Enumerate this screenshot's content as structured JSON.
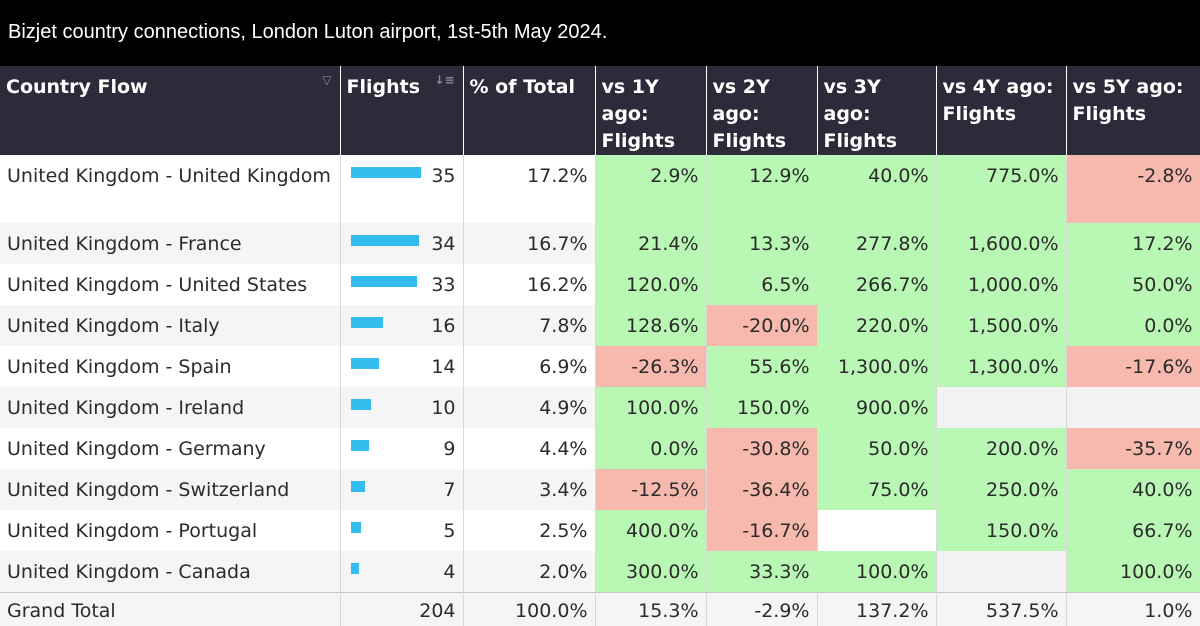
{
  "title": "Bizjet country connections, London Luton airport, 1st-5th May 2024.",
  "colors": {
    "header_bg": "#2b2b3a",
    "positive": "#b8f7b4",
    "negative": "#f7b8ad",
    "bar": "#33bdef"
  },
  "icons": {
    "country_sort": "filter-icon",
    "flights_sort": "sort-descending-icon"
  },
  "chart_data": {
    "type": "table",
    "columns": [
      "Country Flow",
      "Flights",
      "% of Total",
      "vs 1Y ago: Flights",
      "vs 2Y ago: Flights",
      "vs 3Y ago: Flights",
      "vs 4Y ago: Flights",
      "vs 5Y ago: Flights"
    ],
    "bar_max": 35,
    "rows": [
      {
        "country": "United Kingdom - United Kingdom",
        "flights": 35,
        "pct": "17.2%",
        "vs": [
          "2.9%",
          "12.9%",
          "40.0%",
          "775.0%",
          "-2.8%"
        ]
      },
      {
        "country": "United Kingdom - France",
        "flights": 34,
        "pct": "16.7%",
        "vs": [
          "21.4%",
          "13.3%",
          "277.8%",
          "1,600.0%",
          "17.2%"
        ]
      },
      {
        "country": "United Kingdom - United States",
        "flights": 33,
        "pct": "16.2%",
        "vs": [
          "120.0%",
          "6.5%",
          "266.7%",
          "1,000.0%",
          "50.0%"
        ]
      },
      {
        "country": "United Kingdom - Italy",
        "flights": 16,
        "pct": "7.8%",
        "vs": [
          "128.6%",
          "-20.0%",
          "220.0%",
          "1,500.0%",
          "0.0%"
        ]
      },
      {
        "country": "United Kingdom - Spain",
        "flights": 14,
        "pct": "6.9%",
        "vs": [
          "-26.3%",
          "55.6%",
          "1,300.0%",
          "1,300.0%",
          "-17.6%"
        ]
      },
      {
        "country": "United Kingdom - Ireland",
        "flights": 10,
        "pct": "4.9%",
        "vs": [
          "100.0%",
          "150.0%",
          "900.0%",
          "",
          ""
        ]
      },
      {
        "country": "United Kingdom - Germany",
        "flights": 9,
        "pct": "4.4%",
        "vs": [
          "0.0%",
          "-30.8%",
          "50.0%",
          "200.0%",
          "-35.7%"
        ]
      },
      {
        "country": "United Kingdom - Switzerland",
        "flights": 7,
        "pct": "3.4%",
        "vs": [
          "-12.5%",
          "-36.4%",
          "75.0%",
          "250.0%",
          "40.0%"
        ]
      },
      {
        "country": "United Kingdom - Portugal",
        "flights": 5,
        "pct": "2.5%",
        "vs": [
          "400.0%",
          "-16.7%",
          "",
          "150.0%",
          "66.7%"
        ]
      },
      {
        "country": "United Kingdom - Canada",
        "flights": 4,
        "pct": "2.0%",
        "vs": [
          "300.0%",
          "33.3%",
          "100.0%",
          "",
          "100.0%"
        ]
      }
    ],
    "total": {
      "label": "Grand Total",
      "flights": "204",
      "pct": "100.0%",
      "vs": [
        "15.3%",
        "-2.9%",
        "137.2%",
        "537.5%",
        "1.0%"
      ]
    }
  }
}
